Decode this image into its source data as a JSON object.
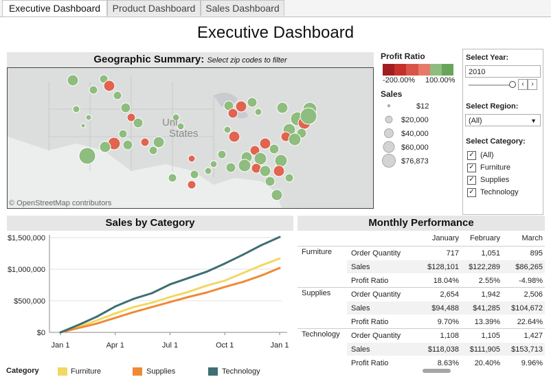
{
  "tabs": [
    {
      "label": "Executive Dashboard",
      "active": true
    },
    {
      "label": "Product Dashboard",
      "active": false
    },
    {
      "label": "Sales Dashboard",
      "active": false
    }
  ],
  "page_title": "Executive Dashboard",
  "geo": {
    "title": "Geographic Summary:",
    "subtitle": "Select zip codes to filter",
    "map_label_line1": "Uni",
    "map_label_line2": "States",
    "attribution": "© OpenStreetMap contributors"
  },
  "profit_legend": {
    "title": "Profit Ratio",
    "min_label": "-200.00%",
    "max_label": "100.00%",
    "colors": [
      "#a11d22",
      "#c5302b",
      "#d9534a",
      "#e67a68",
      "#8fbc7f",
      "#68a55b"
    ]
  },
  "sales_legend": {
    "title": "Sales",
    "items": [
      "$12",
      "$20,000",
      "$40,000",
      "$60,000",
      "$76,873"
    ]
  },
  "filters": {
    "year_label": "Select Year:",
    "year_value": "2010",
    "region_label": "Select Region:",
    "region_value": "(All)",
    "category_label": "Select Category:",
    "categories": [
      {
        "label": "(All)",
        "checked": true
      },
      {
        "label": "Furniture",
        "checked": true
      },
      {
        "label": "Supplies",
        "checked": true
      },
      {
        "label": "Technology",
        "checked": true
      }
    ]
  },
  "sales_chart": {
    "title": "Sales by Category",
    "legend_title": "Category",
    "colors": {
      "Furniture": "#f1d861",
      "Supplies": "#ef8a36",
      "Technology": "#3e6f73"
    }
  },
  "chart_data": {
    "type": "line",
    "x_ticks": [
      "Jan 1",
      "Apr 1",
      "Jul 1",
      "Oct 1",
      "Jan 1"
    ],
    "y_ticks": [
      "$1,500,000",
      "$1,000,000",
      "$500,000",
      "$0"
    ],
    "ylim": [
      0,
      1500000
    ],
    "x": [
      "Jan 1",
      "Feb 1",
      "Mar 1",
      "Apr 1",
      "May 1",
      "Jun 1",
      "Jul 1",
      "Aug 1",
      "Sep 1",
      "Oct 1",
      "Nov 1",
      "Dec 1",
      "Jan 1"
    ],
    "series": [
      {
        "name": "Furniture",
        "values": [
          0,
          90000,
          190000,
          300000,
          400000,
          470000,
          560000,
          640000,
          740000,
          820000,
          940000,
          1060000,
          1170000
        ]
      },
      {
        "name": "Supplies",
        "values": [
          0,
          70000,
          140000,
          230000,
          320000,
          400000,
          480000,
          560000,
          630000,
          720000,
          800000,
          900000,
          1020000
        ]
      },
      {
        "name": "Technology",
        "values": [
          0,
          120000,
          250000,
          410000,
          530000,
          620000,
          760000,
          860000,
          960000,
          1090000,
          1230000,
          1380000,
          1510000
        ]
      }
    ],
    "grid": true,
    "legend": "bottom"
  },
  "monthly": {
    "title": "Monthly Performance",
    "months": [
      "January",
      "February",
      "March"
    ],
    "groups": [
      {
        "category": "Furniture",
        "rows": [
          {
            "metric": "Order Quantity",
            "values": [
              "717",
              "1,051",
              "895"
            ]
          },
          {
            "metric": "Sales",
            "values": [
              "$128,101",
              "$122,289",
              "$86,265"
            ]
          },
          {
            "metric": "Profit Ratio",
            "values": [
              "18.04%",
              "2.55%",
              "-4.98%"
            ]
          }
        ]
      },
      {
        "category": "Supplies",
        "rows": [
          {
            "metric": "Order Quantity",
            "values": [
              "2,654",
              "1,942",
              "2,506"
            ]
          },
          {
            "metric": "Sales",
            "values": [
              "$94,488",
              "$41,285",
              "$104,672"
            ]
          },
          {
            "metric": "Profit Ratio",
            "values": [
              "9.70%",
              "13.39%",
              "22.64%"
            ]
          }
        ]
      },
      {
        "category": "Technology",
        "rows": [
          {
            "metric": "Order Quantity",
            "values": [
              "1,108",
              "1,105",
              "1,427"
            ]
          },
          {
            "metric": "Sales",
            "values": [
              "$118,038",
              "$111,905",
              "$153,713"
            ]
          },
          {
            "metric": "Profit Ratio",
            "values": [
              "8.63%",
              "20.40%",
              "9.96%"
            ]
          }
        ]
      }
    ]
  }
}
